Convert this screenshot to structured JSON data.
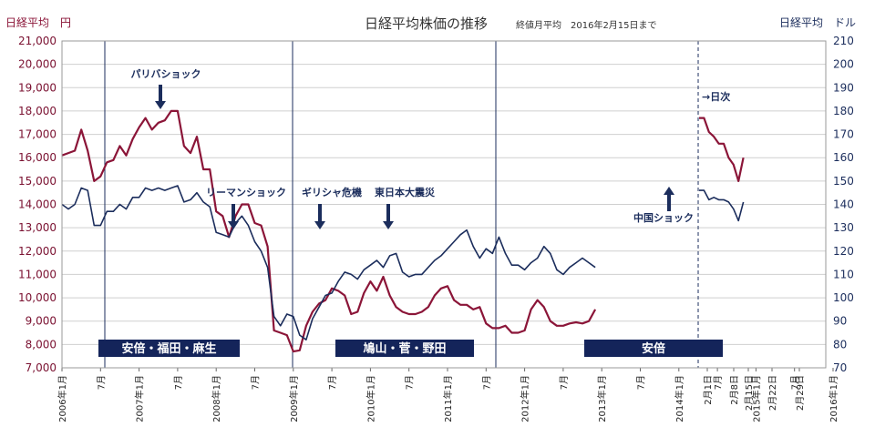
{
  "chart_data": {
    "type": "line",
    "title": "日経平均株価の推移",
    "subtitle": "終値月平均　2016年2月15日まで",
    "left_axis_title": "日経平均　円",
    "right_axis_title": "日経平均　ドル",
    "left_axis": {
      "min": 7000,
      "max": 21000,
      "step": 1000,
      "tick_labels": [
        "7,000",
        "8,000",
        "9,000",
        "10,000",
        "11,000",
        "12,000",
        "13,000",
        "14,000",
        "15,000",
        "16,000",
        "17,000",
        "18,000",
        "19,000",
        "20,000",
        "21,000"
      ]
    },
    "right_axis": {
      "min": 70,
      "max": 210,
      "step": 10,
      "tick_labels": [
        "70",
        "80",
        "90",
        "100",
        "110",
        "120",
        "130",
        "140",
        "150",
        "160",
        "170",
        "180",
        "190",
        "200",
        "210"
      ]
    },
    "x_tick_labels": [
      "2006年1月",
      "7月",
      "2007年1月",
      "7月",
      "2008年1月",
      "7月",
      "2009年1月",
      "7月",
      "2010年1月",
      "7月",
      "2011年1月",
      "7月",
      "2012年1月",
      "7月",
      "2013年1月",
      "7月",
      "2014年1月",
      "7月",
      "2015年1月",
      "7月",
      "2016年1月",
      "2月1日",
      "2月8日",
      "2月15日",
      "2月22日",
      "2月29日"
    ],
    "colors": {
      "yen": "#8b1538",
      "dollar": "#1b2d5c",
      "grid": "#cfcfcf"
    },
    "grid": true,
    "series": [
      {
        "axis": "left",
        "color": "#8b1538",
        "values": [
          16100,
          16200,
          16300,
          17200,
          16300,
          15000,
          15200,
          15800,
          15900,
          16500,
          16100,
          16800,
          17300,
          17700,
          17200,
          17500,
          17600,
          18000,
          18000,
          16500,
          16200,
          16900,
          15500,
          15500,
          13700,
          13500,
          12600,
          13500,
          14000,
          14000,
          13200,
          13100,
          12200,
          8600,
          8500,
          8400,
          7700,
          7750,
          8800,
          9400,
          9750,
          9900,
          10400,
          10300,
          10100,
          9300,
          9400,
          10200,
          10700,
          10300,
          10900,
          10100,
          9600,
          9400,
          9300,
          9300,
          9400,
          9600,
          10100,
          10400,
          10500,
          9900,
          9700,
          9700,
          9500,
          9600,
          8900,
          8700,
          8700,
          8800,
          8500,
          8500,
          8600,
          9500,
          9900,
          9600,
          9000,
          8800,
          8800,
          8900,
          8950,
          8900,
          9000,
          9500
        ],
        "daily": [
          17700,
          17700,
          17100,
          16900,
          16600,
          16600,
          16000,
          15700,
          15000,
          16000
        ]
      },
      {
        "axis": "right",
        "color": "#1b2d5c",
        "values": [
          140,
          138,
          140,
          147,
          146,
          131,
          131,
          137,
          137,
          140,
          138,
          143,
          143,
          147,
          146,
          147,
          146,
          147,
          148,
          141,
          142,
          145,
          141,
          139,
          128,
          127,
          126,
          132,
          135,
          131,
          124,
          120,
          113,
          92,
          88,
          93,
          92,
          84,
          82,
          91,
          96,
          101,
          102,
          107,
          111,
          110,
          108,
          112,
          114,
          116,
          113,
          118,
          119,
          111,
          109,
          110,
          110,
          113,
          116,
          118,
          121,
          124,
          127,
          129,
          122,
          117,
          121,
          119,
          126,
          119,
          114,
          114,
          112,
          115,
          117,
          122,
          119,
          112,
          110,
          113,
          115,
          117,
          115,
          113
        ],
        "daily": [
          146,
          146,
          142,
          143,
          142,
          142,
          141,
          138,
          133,
          141
        ]
      }
    ],
    "annotations": [
      "パリバショック",
      "リーマンショック",
      "ギリシャ危機",
      "東日本大震災",
      "中国ショック",
      "→日次"
    ],
    "eras": [
      "安倍・福田・麻生",
      "鳩山・菅・野田",
      "安倍"
    ]
  }
}
